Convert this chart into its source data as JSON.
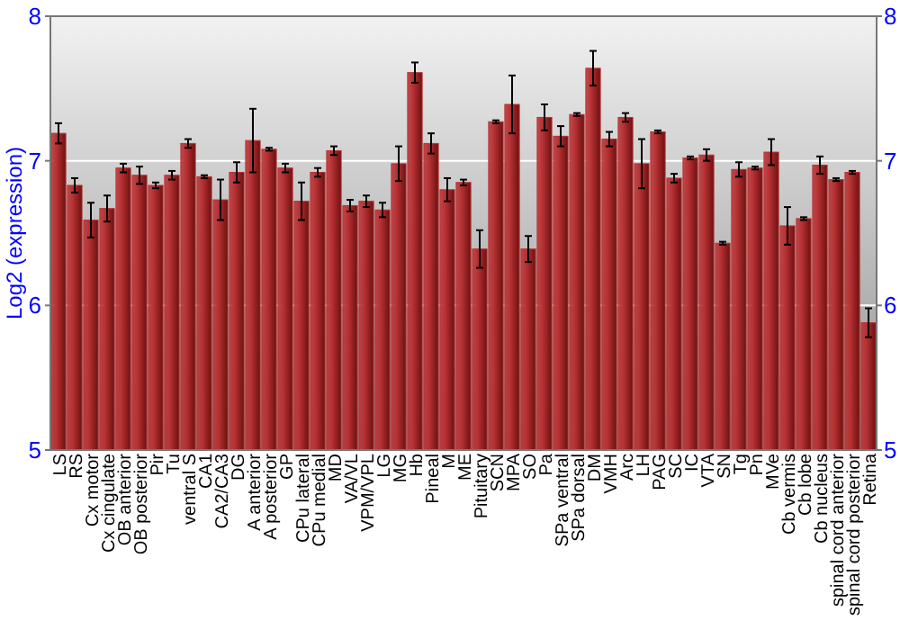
{
  "chart_data": {
    "type": "bar",
    "ylabel": "Log2 (expression)",
    "categories": [
      "LS",
      "RS",
      "Cx motor",
      "Cx cingulate",
      "OB anterior",
      "OB posterior",
      "Pir",
      "Tu",
      "ventral S",
      "CA1",
      "CA2/CA3",
      "DG",
      "A anterior",
      "A posterior",
      "GP",
      "CPu lateral",
      "CPu medial",
      "MD",
      "VA/VL",
      "VPM/VPL",
      "LG",
      "MG",
      "Hb",
      "Pineal",
      "M",
      "ME",
      "Pituitary",
      "SCN",
      "MPA",
      "SO",
      "Pa",
      "SPa ventral",
      "SPa dorsal",
      "DM",
      "VMH",
      "Arc",
      "LH",
      "PAG",
      "SC",
      "IC",
      "VTA",
      "SN",
      "Tg",
      "Pn",
      "MVe",
      "Cb vermis",
      "Cb lobe",
      "Cb nucleus",
      "spinal cord anterior",
      "spinal cord posterior",
      "Retina"
    ],
    "values": [
      7.19,
      6.83,
      6.59,
      6.67,
      6.95,
      6.9,
      6.83,
      6.9,
      7.12,
      6.89,
      6.73,
      6.92,
      7.14,
      7.08,
      6.95,
      6.72,
      6.92,
      7.07,
      6.69,
      6.72,
      6.66,
      6.98,
      7.61,
      7.12,
      6.8,
      6.85,
      6.39,
      7.27,
      7.39,
      6.39,
      7.3,
      7.17,
      7.32,
      7.64,
      7.15,
      7.3,
      6.98,
      7.2,
      6.88,
      7.02,
      7.04,
      6.43,
      6.94,
      6.95,
      7.06,
      6.55,
      6.6,
      6.97,
      6.87,
      6.92,
      5.88
    ],
    "errors": [
      0.07,
      0.05,
      0.12,
      0.09,
      0.03,
      0.06,
      0.02,
      0.03,
      0.03,
      0.01,
      0.14,
      0.07,
      0.22,
      0.01,
      0.03,
      0.13,
      0.03,
      0.03,
      0.04,
      0.04,
      0.05,
      0.12,
      0.07,
      0.07,
      0.08,
      0.02,
      0.13,
      0.01,
      0.2,
      0.09,
      0.09,
      0.07,
      0.01,
      0.12,
      0.05,
      0.03,
      0.17,
      0.01,
      0.03,
      0.01,
      0.04,
      0.01,
      0.05,
      0.01,
      0.09,
      0.13,
      0.01,
      0.06,
      0.01,
      0.01,
      0.1
    ],
    "color": "#b83234",
    "ylim": [
      5,
      8
    ],
    "yticks": [
      5,
      6,
      7,
      8
    ],
    "y2lim": [
      5,
      8
    ],
    "y2ticks": [
      5,
      6,
      7,
      8
    ],
    "grid": "y"
  }
}
